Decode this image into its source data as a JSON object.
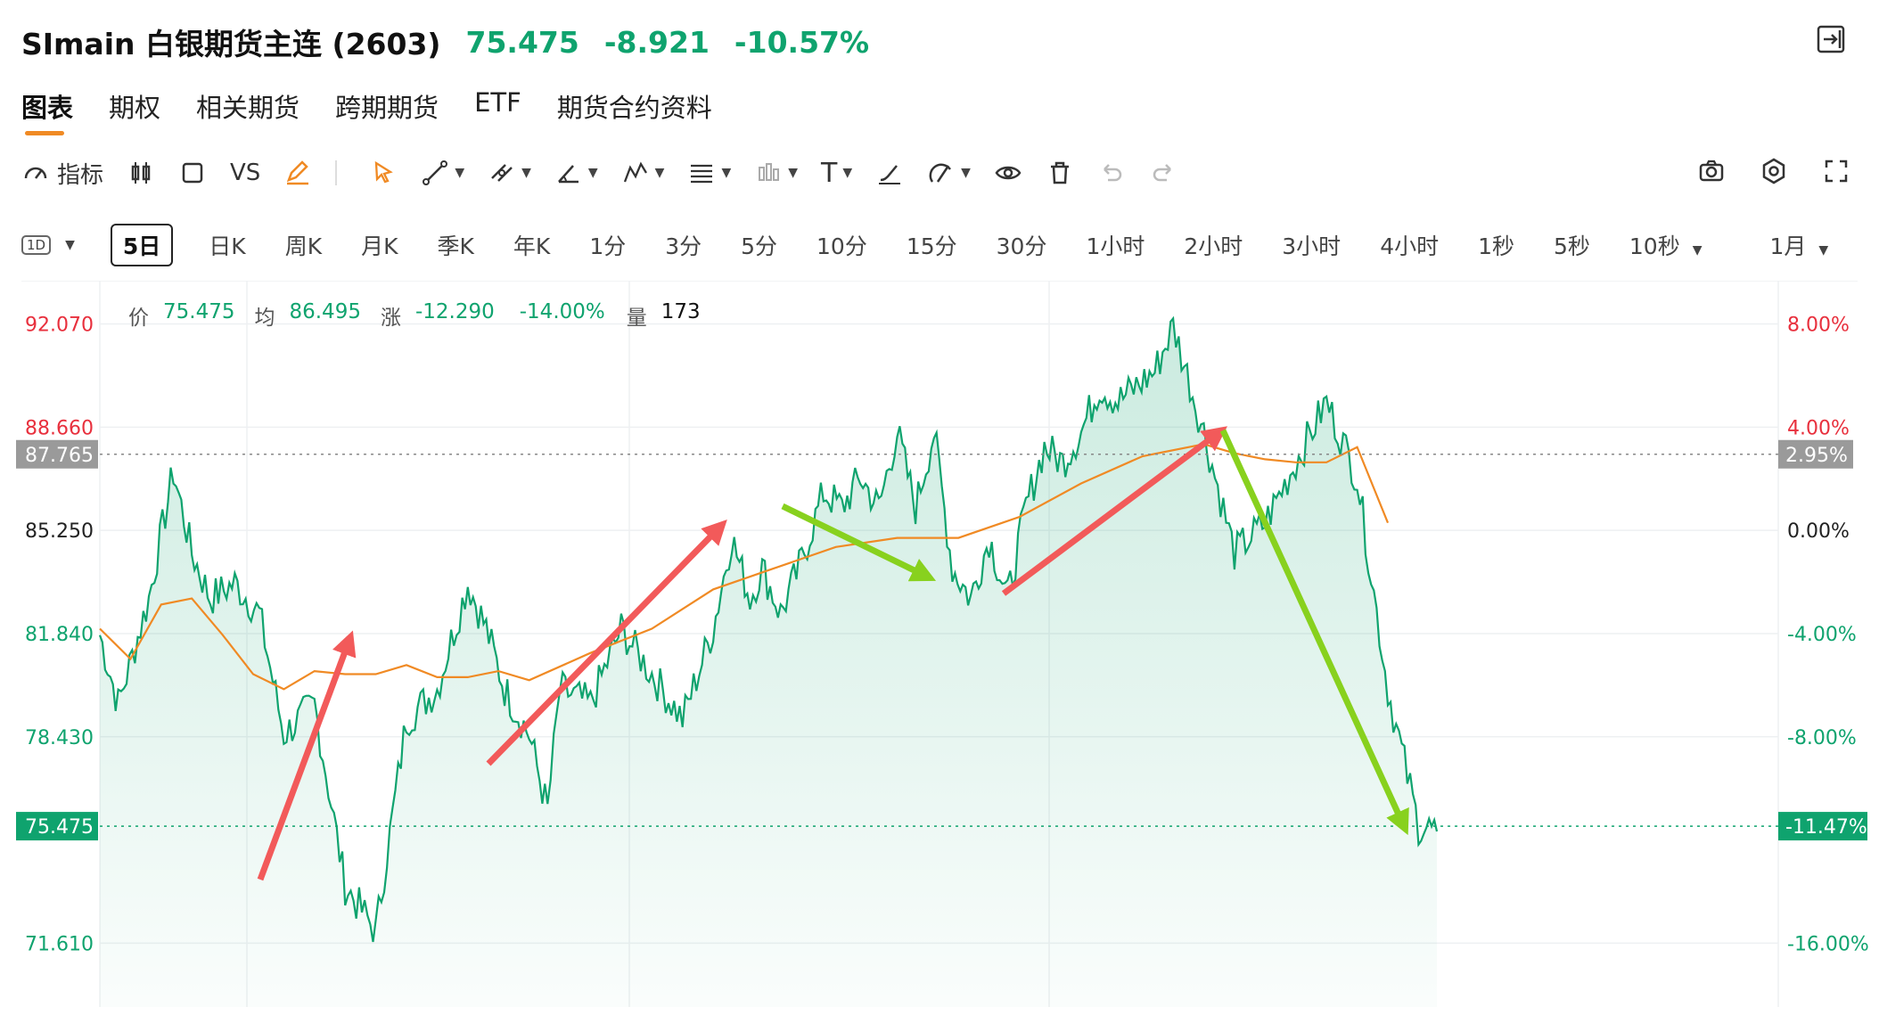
{
  "header": {
    "title": "SImain 白银期货主连 (2603)",
    "last": "75.475",
    "change": "-8.921",
    "change_pct": "-10.57%"
  },
  "tabs": [
    "图表",
    "期权",
    "相关期货",
    "跨期期货",
    "ETF",
    "期货合约资料"
  ],
  "toolbar": {
    "indicators_label": "指标",
    "compare_label": "VS",
    "text_tool": "T"
  },
  "periods": {
    "current_box": "1D",
    "items": [
      "5日",
      "日K",
      "周K",
      "月K",
      "季K",
      "年K",
      "1分",
      "3分",
      "5分",
      "10分",
      "15分",
      "30分",
      "1小时",
      "2小时",
      "3小时",
      "4小时",
      "1秒",
      "5秒",
      "10秒"
    ],
    "range": "1月"
  },
  "info_bar": {
    "price_label": "价",
    "price": "75.475",
    "avg_label": "均",
    "avg": "86.495",
    "chg_label": "涨",
    "chg": "-12.290",
    "chg_pct": "-14.00%",
    "vol_label": "量",
    "vol": "173"
  },
  "colors": {
    "up": "#e8303d",
    "down": "#0fa36e",
    "avg": "#f08a24",
    "arrow_up": "#f25a5a",
    "arrow_down": "#88d11e"
  },
  "chart_data": {
    "type": "line",
    "y_left_ticks": [
      "92.070",
      "88.660",
      "85.250",
      "81.840",
      "78.430",
      "71.610"
    ],
    "y_right_ticks": [
      "8.00%",
      "4.00%",
      "0.00%",
      "-4.00%",
      "-8.00%",
      "-16.00%"
    ],
    "ylim": [
      69.5,
      93.5
    ],
    "ref_line": {
      "price": "87.765",
      "pct": "2.95%"
    },
    "current_line": {
      "price": "75.475",
      "pct": "-11.47%"
    },
    "series": [
      {
        "name": "价",
        "x": [
          0,
          3,
          8,
          12,
          15,
          18,
          22,
          26,
          30,
          35,
          40,
          45,
          50,
          55,
          60,
          63,
          66,
          70,
          73,
          75,
          80,
          85,
          90,
          95,
          100,
          103,
          106,
          108,
          111,
          114,
          118,
          121,
          124,
          127,
          130,
          133,
          136,
          139,
          142,
          145,
          148,
          151,
          154,
          157,
          160,
          163,
          166,
          169,
          172,
          175,
          180,
          185,
          190,
          195,
          200,
          205,
          210,
          215,
          218
        ],
        "y": [
          81.8,
          79.5,
          83.0,
          87.2,
          84.5,
          83.0,
          83.5,
          82.5,
          78.5,
          79.5,
          73.5,
          72.0,
          79.0,
          80.0,
          83.5,
          82.0,
          80.0,
          78.5,
          76.0,
          80.0,
          79.5,
          82.0,
          80.5,
          79.0,
          82.0,
          85.0,
          83.0,
          84.0,
          82.5,
          84.0,
          86.5,
          86.0,
          87.0,
          86.0,
          88.5,
          86.0,
          88.5,
          84.0,
          83.0,
          85.0,
          83.0,
          86.0,
          88.0,
          87.5,
          88.5,
          90.0,
          89.5,
          90.0,
          90.5,
          92.0,
          88.5,
          84.5,
          85.5,
          87.5,
          89.5,
          87.0,
          80.0,
          75.5,
          75.3
        ]
      },
      {
        "name": "均",
        "x": [
          0,
          5,
          10,
          15,
          20,
          25,
          30,
          35,
          40,
          45,
          50,
          55,
          60,
          65,
          70,
          80,
          90,
          100,
          110,
          120,
          130,
          140,
          150,
          160,
          170,
          180,
          185,
          190,
          195,
          200,
          205,
          210
        ],
        "y": [
          82.0,
          81.0,
          82.8,
          83.0,
          81.8,
          80.5,
          80.0,
          80.6,
          80.5,
          80.5,
          80.8,
          80.4,
          80.4,
          80.6,
          80.3,
          81.2,
          82.0,
          83.3,
          84.0,
          84.7,
          85.0,
          85.0,
          85.7,
          86.8,
          87.7,
          88.1,
          87.8,
          87.6,
          87.5,
          87.5,
          88.0,
          85.5
        ]
      }
    ]
  }
}
